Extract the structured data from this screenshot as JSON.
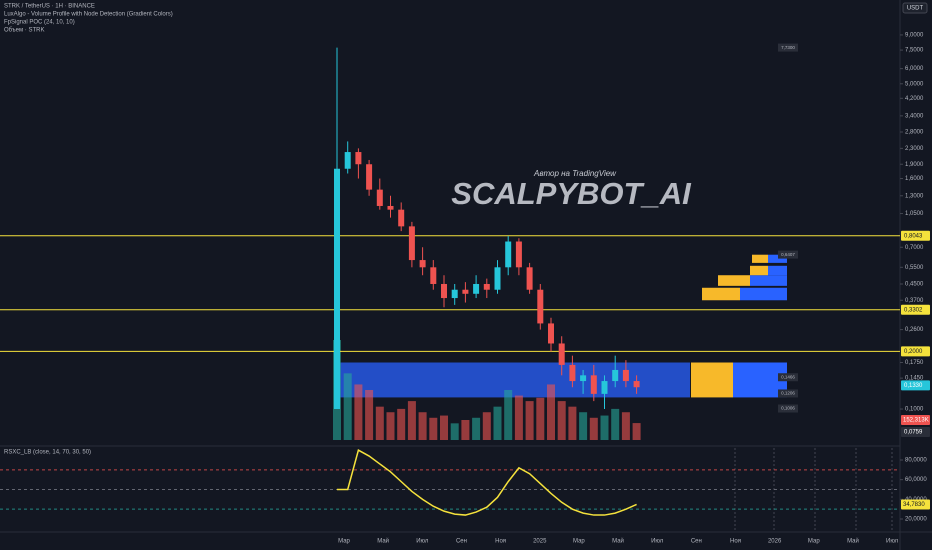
{
  "header": {
    "symbol": "STRK / TetherUS · 1H · BINANCE",
    "indicators": [
      "LuxAlgo - Volume Profile with Node Detection (Gradient Colors)",
      "FpSignal POC (24, 10, 10)",
      "Объем · STRK"
    ],
    "currency": "USDT"
  },
  "watermark": {
    "subtitle": "Автор на TradingView",
    "title": "SCALPYBOT_AI"
  },
  "chart_data": [
    {
      "type": "candlestick",
      "log_scale": true,
      "grid": false,
      "ylim": [
        0.0689,
        13.7
      ],
      "yticks": [
        {
          "value": 9,
          "label": "9,0000"
        },
        {
          "value": 7.5,
          "label": "7,5000"
        },
        {
          "value": 6,
          "label": "6,0000"
        },
        {
          "value": 5,
          "label": "5,0000"
        },
        {
          "value": 4.2,
          "label": "4,2000"
        },
        {
          "value": 3.4,
          "label": "3,4000"
        },
        {
          "value": 2.8,
          "label": "2,8000"
        },
        {
          "value": 2.3,
          "label": "2,3000"
        },
        {
          "value": 1.9,
          "label": "1,9000"
        },
        {
          "value": 1.6,
          "label": "1,6000"
        },
        {
          "value": 1.3,
          "label": "1,3000"
        },
        {
          "value": 1.05,
          "label": "1,0500"
        },
        {
          "value": 0.7,
          "label": "0,7000"
        },
        {
          "value": 0.55,
          "label": "0,5500"
        },
        {
          "value": 0.45,
          "label": "0,4500"
        },
        {
          "value": 0.37,
          "label": "0,3700"
        },
        {
          "value": 0.26,
          "label": "0,2600"
        },
        {
          "value": 0.175,
          "label": "0,1750"
        },
        {
          "value": 0.145,
          "label": "0,1450"
        },
        {
          "value": 0.1,
          "label": "0,1000"
        }
      ],
      "x_labels": [
        "Мар",
        "Май",
        "Июл",
        "Сен",
        "Ноя",
        "2025",
        "Мар",
        "Май",
        "Июл",
        "Сен",
        "Ноя",
        "2026",
        "Мар",
        "Май",
        "Июл"
      ],
      "up_color": "#26c6da",
      "down_color": "#ef5350",
      "open": [
        0.1,
        1.8,
        2.2,
        1.9,
        1.4,
        1.15,
        1.1,
        0.9,
        0.6,
        0.55,
        0.45,
        0.38,
        0.42,
        0.4,
        0.45,
        0.42,
        0.55,
        0.75,
        0.55,
        0.42,
        0.28,
        0.22,
        0.17,
        0.14,
        0.15,
        0.12,
        0.14,
        0.16,
        0.14
      ],
      "high": [
        7.73,
        2.5,
        2.3,
        2.0,
        1.6,
        1.3,
        1.2,
        0.95,
        0.7,
        0.6,
        0.5,
        0.45,
        0.46,
        0.5,
        0.48,
        0.6,
        0.8,
        0.78,
        0.58,
        0.45,
        0.3,
        0.24,
        0.19,
        0.16,
        0.17,
        0.15,
        0.19,
        0.18,
        0.15
      ],
      "low": [
        0.1,
        1.7,
        1.6,
        1.3,
        1.1,
        1.0,
        0.85,
        0.55,
        0.5,
        0.42,
        0.34,
        0.35,
        0.36,
        0.38,
        0.38,
        0.4,
        0.5,
        0.5,
        0.4,
        0.26,
        0.2,
        0.15,
        0.13,
        0.12,
        0.11,
        0.1,
        0.13,
        0.13,
        0.12
      ],
      "close": [
        1.8,
        2.2,
        1.9,
        1.4,
        1.15,
        1.1,
        0.9,
        0.6,
        0.55,
        0.45,
        0.38,
        0.42,
        0.4,
        0.45,
        0.42,
        0.55,
        0.75,
        0.55,
        0.42,
        0.28,
        0.22,
        0.17,
        0.14,
        0.15,
        0.12,
        0.14,
        0.16,
        0.14,
        0.13
      ],
      "volume": [
        900,
        600,
        500,
        450,
        300,
        250,
        280,
        350,
        250,
        200,
        220,
        150,
        180,
        200,
        250,
        300,
        450,
        400,
        350,
        380,
        500,
        350,
        300,
        250,
        200,
        220,
        280,
        250,
        152.313
      ],
      "levels": [
        {
          "value": 0.8043,
          "color": "#f5e23c"
        },
        {
          "value": 0.3302,
          "color": "#f5e23c"
        },
        {
          "value": 0.2,
          "color": "#f5e23c"
        }
      ],
      "zone": {
        "low": 0.115,
        "high": 0.175,
        "color": "#2962ff"
      },
      "profile": [
        {
          "low": 0.115,
          "high": 0.175,
          "buy": 42,
          "sell": 54
        },
        {
          "low": 0.37,
          "high": 0.43,
          "buy": 38,
          "sell": 47
        },
        {
          "low": 0.44,
          "high": 0.5,
          "buy": 32,
          "sell": 37
        },
        {
          "low": 0.5,
          "high": 0.56,
          "buy": 18,
          "sell": 19
        },
        {
          "low": 0.58,
          "high": 0.64,
          "buy": 16,
          "sell": 19
        }
      ],
      "notes": [
        {
          "value": 7.73,
          "label": "7,7300"
        },
        {
          "value": 0.6407,
          "label": "0,6407"
        },
        {
          "value": 0.1466,
          "label": "0,1466"
        },
        {
          "value": 0.1206,
          "label": "0,1206"
        },
        {
          "value": 0.1006,
          "label": "0,1006"
        }
      ],
      "markers": [
        {
          "value": 0.8043,
          "label": "0,8043",
          "color": "#f5e23c"
        },
        {
          "value": 0.3302,
          "label": "0,3302",
          "color": "#f5e23c"
        },
        {
          "value": 0.2,
          "label": "0,2000",
          "color": "#f5e23c"
        },
        {
          "value": 0.133,
          "label": "0,1330",
          "color": "#26c6da"
        },
        {
          "value": 0.0759,
          "label": "0,0759",
          "color": "#2a2e39"
        }
      ],
      "volume_label": {
        "label": "152,313K",
        "color": "#ef5350"
      }
    },
    {
      "type": "line",
      "title": "RSXC_LB (close, 14, 70, 30, 50)",
      "color": "#f5e23c",
      "ylim": [
        8.8,
        92.2
      ],
      "yticks": [
        {
          "value": 80,
          "label": "80,0000"
        },
        {
          "value": 60,
          "label": "60,0000"
        },
        {
          "value": 40,
          "label": "40,0000"
        },
        {
          "value": 20,
          "label": "20,0000"
        }
      ],
      "levels": [
        {
          "value": 70,
          "color": "#ef5350"
        },
        {
          "value": 50,
          "color": "#787b86"
        },
        {
          "value": 30,
          "color": "#26a69a"
        }
      ],
      "values": [
        50,
        50,
        90,
        84,
        76,
        68,
        58,
        48,
        40,
        33,
        28,
        25,
        24,
        27,
        32,
        42,
        58,
        72,
        66,
        56,
        46,
        37,
        30,
        26,
        24,
        24,
        26,
        30,
        34.783
      ],
      "last_label": {
        "value": 34.783,
        "label": "34,7830"
      }
    }
  ]
}
